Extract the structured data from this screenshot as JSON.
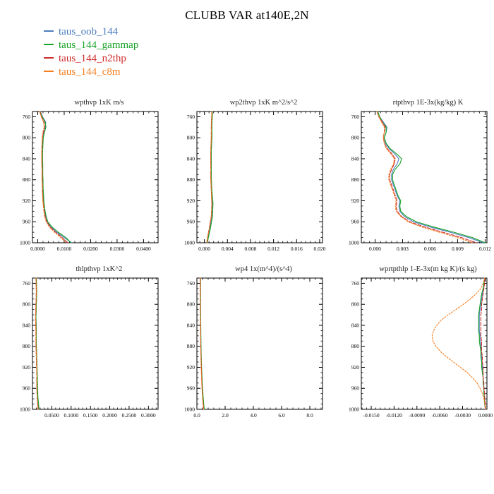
{
  "header": {
    "title": "CLUBB VAR at140E,2N"
  },
  "legend": {
    "items": [
      {
        "label": "taus_oob_144",
        "color": "#4b7dbd",
        "line_style": "solid"
      },
      {
        "label": "taus_144_gammap",
        "color": "#18a428",
        "line_style": "solid"
      },
      {
        "label": "taus_144_n2thp",
        "color": "#cf2b2b",
        "line_style": "dashed"
      },
      {
        "label": "taus_144_c8m",
        "color": "#f57e1f",
        "line_style": "dotted"
      }
    ]
  },
  "chart_data": [
    {
      "type": "line",
      "title": "wpthvp   1xK m/s",
      "xlim": [
        -0.002,
        0.0455
      ],
      "xticks": [
        0.0,
        0.01,
        0.02,
        0.03,
        0.04
      ],
      "xtick_labels": [
        "0.0000",
        "0.0100",
        "0.0200",
        "0.0300",
        "0.0400"
      ],
      "ylim": [
        750,
        1000
      ],
      "yticks": [
        760,
        800,
        840,
        880,
        920,
        960,
        1000
      ],
      "ytick_labels": [
        "760",
        "800",
        "840",
        "880",
        "920",
        "960",
        "1000"
      ],
      "y_levels": [
        750,
        760,
        770,
        780,
        790,
        800,
        810,
        820,
        830,
        840,
        850,
        860,
        870,
        880,
        890,
        900,
        910,
        920,
        930,
        940,
        950,
        960,
        970,
        980,
        990,
        1000
      ],
      "series": [
        {
          "name": "taus_oob_144",
          "values": [
            0.001,
            0.0018,
            0.003,
            0.0029,
            0.0023,
            0.002,
            0.0019,
            0.0018,
            0.0018,
            0.0018,
            0.0018,
            0.0018,
            0.0018,
            0.0019,
            0.0019,
            0.002,
            0.0021,
            0.0022,
            0.0024,
            0.0027,
            0.003,
            0.0036,
            0.005,
            0.0072,
            0.01,
            0.0128
          ]
        },
        {
          "name": "taus_144_gammap",
          "values": [
            0.0009,
            0.0016,
            0.0028,
            0.0031,
            0.0025,
            0.0021,
            0.002,
            0.0019,
            0.0018,
            0.0018,
            0.0019,
            0.0019,
            0.0019,
            0.002,
            0.002,
            0.0021,
            0.0022,
            0.0023,
            0.0025,
            0.0028,
            0.0032,
            0.0038,
            0.0054,
            0.0078,
            0.0106,
            0.0126
          ]
        },
        {
          "name": "taus_144_n2thp",
          "values": [
            0.0008,
            0.0014,
            0.0024,
            0.0026,
            0.0021,
            0.0018,
            0.0017,
            0.0016,
            0.0016,
            0.0016,
            0.0016,
            0.0017,
            0.0017,
            0.0017,
            0.0018,
            0.0018,
            0.0019,
            0.002,
            0.0022,
            0.0025,
            0.0028,
            0.0034,
            0.0047,
            0.0068,
            0.0092,
            0.0114
          ]
        },
        {
          "name": "taus_144_c8m",
          "values": [
            0.0007,
            0.0013,
            0.0022,
            0.0024,
            0.0019,
            0.0017,
            0.0016,
            0.0015,
            0.0015,
            0.0015,
            0.0015,
            0.0016,
            0.0016,
            0.0016,
            0.0017,
            0.0017,
            0.0018,
            0.0019,
            0.0021,
            0.0023,
            0.0026,
            0.0032,
            0.0044,
            0.0063,
            0.0086,
            0.0108
          ]
        }
      ]
    },
    {
      "type": "line",
      "title": "wp2thvp   1xK  m^2/s^2",
      "xlim": [
        -0.0013,
        0.0205
      ],
      "xticks": [
        0.0,
        0.004,
        0.008,
        0.012,
        0.016,
        0.02
      ],
      "xtick_labels": [
        "0.000",
        "0.004",
        "0.008",
        "0.012",
        "0.016",
        "0.020"
      ],
      "ylim": [
        750,
        1000
      ],
      "yticks": [
        760,
        800,
        840,
        880,
        920,
        960,
        1000
      ],
      "ytick_labels": [
        "760",
        "800",
        "840",
        "880",
        "920",
        "960",
        "1000"
      ],
      "y_levels": [
        750,
        775,
        800,
        825,
        850,
        875,
        900,
        925,
        950,
        975,
        1000
      ],
      "series": [
        {
          "name": "taus_oob_144",
          "values": [
            0.0014,
            0.0013,
            0.0013,
            0.0012,
            0.0012,
            0.0012,
            0.0012,
            0.0014,
            0.0013,
            0.0009,
            0.0005
          ]
        },
        {
          "name": "taus_144_gammap",
          "values": [
            0.0014,
            0.0013,
            0.0013,
            0.0012,
            0.0012,
            0.0012,
            0.0013,
            0.0015,
            0.0014,
            0.001,
            0.0005
          ]
        },
        {
          "name": "taus_144_n2thp",
          "values": [
            0.0013,
            0.0012,
            0.0012,
            0.0011,
            0.0011,
            0.0011,
            0.0012,
            0.0013,
            0.0012,
            0.0008,
            0.0004
          ]
        },
        {
          "name": "taus_144_c8m",
          "values": [
            0.0013,
            0.0012,
            0.0012,
            0.0011,
            0.0011,
            0.0011,
            0.0012,
            0.0013,
            0.0012,
            0.0008,
            0.0004
          ]
        }
      ]
    },
    {
      "type": "line",
      "title": "rtpthvp   1E-3x(kg/kg) K",
      "xlim": [
        -0.0015,
        0.0122
      ],
      "xticks": [
        0.0,
        0.003,
        0.006,
        0.009,
        0.012
      ],
      "xtick_labels": [
        "0.000",
        "0.003",
        "0.006",
        "0.009",
        "0.012"
      ],
      "ylim": [
        750,
        1000
      ],
      "yticks": [
        760,
        800,
        840,
        880,
        920,
        960,
        1000
      ],
      "ytick_labels": [
        "760",
        "800",
        "840",
        "880",
        "920",
        "960",
        "1000"
      ],
      "y_levels": [
        750,
        760,
        770,
        780,
        790,
        800,
        810,
        820,
        830,
        840,
        850,
        860,
        870,
        880,
        890,
        900,
        910,
        920,
        930,
        940,
        950,
        960,
        970,
        980,
        990,
        1000
      ],
      "series": [
        {
          "name": "taus_oob_144",
          "values": [
            0.0003,
            0.0005,
            0.0009,
            0.0013,
            0.0012,
            0.001,
            0.0011,
            0.0015,
            0.0021,
            0.0026,
            0.0024,
            0.002,
            0.0018,
            0.0018,
            0.002,
            0.0022,
            0.0024,
            0.0027,
            0.0026,
            0.0027,
            0.0032,
            0.0042,
            0.006,
            0.0082,
            0.0102,
            0.0118
          ]
        },
        {
          "name": "taus_144_gammap",
          "values": [
            0.0003,
            0.0005,
            0.0008,
            0.0012,
            0.0012,
            0.001,
            0.0012,
            0.0016,
            0.0023,
            0.0029,
            0.0027,
            0.0022,
            0.0019,
            0.0019,
            0.0021,
            0.0023,
            0.0025,
            0.0028,
            0.0027,
            0.0028,
            0.0034,
            0.0045,
            0.0064,
            0.0086,
            0.0106,
            0.012
          ]
        },
        {
          "name": "taus_144_n2thp",
          "values": [
            0.0002,
            0.0004,
            0.0008,
            0.0011,
            0.001,
            0.0009,
            0.001,
            0.0013,
            0.0018,
            0.0022,
            0.0021,
            0.0018,
            0.0016,
            0.0016,
            0.0018,
            0.002,
            0.0022,
            0.0024,
            0.0023,
            0.0024,
            0.0029,
            0.0038,
            0.0054,
            0.0074,
            0.0094,
            0.011
          ]
        },
        {
          "name": "taus_144_c8m",
          "values": [
            0.0002,
            0.0004,
            0.0007,
            0.001,
            0.001,
            0.0009,
            0.001,
            0.0012,
            0.0017,
            0.0021,
            0.002,
            0.0017,
            0.0015,
            0.0015,
            0.0017,
            0.0019,
            0.0021,
            0.0023,
            0.0022,
            0.0023,
            0.0028,
            0.0036,
            0.0051,
            0.007,
            0.009,
            0.0106
          ]
        }
      ]
    },
    {
      "type": "line",
      "title": "thlpthvp   1xK^2",
      "xlim": [
        0.0,
        0.325
      ],
      "xticks": [
        0.05,
        0.1,
        0.15,
        0.2,
        0.25,
        0.3
      ],
      "xtick_labels": [
        "0.0500",
        "0.1000",
        "0.1500",
        "0.2000",
        "0.2500",
        "0.3000"
      ],
      "ylim": [
        750,
        1000
      ],
      "yticks": [
        760,
        800,
        840,
        880,
        920,
        960,
        1000
      ],
      "ytick_labels": [
        "760",
        "800",
        "840",
        "880",
        "920",
        "960",
        "1000"
      ],
      "y_levels": [
        750,
        775,
        800,
        825,
        850,
        875,
        900,
        925,
        950,
        975,
        1000
      ],
      "series": [
        {
          "name": "taus_oob_144",
          "values": [
            0.01,
            0.011,
            0.01,
            0.009,
            0.01,
            0.01,
            0.011,
            0.012,
            0.012,
            0.013,
            0.016
          ]
        },
        {
          "name": "taus_144_gammap",
          "values": [
            0.01,
            0.011,
            0.01,
            0.009,
            0.01,
            0.01,
            0.011,
            0.012,
            0.013,
            0.014,
            0.017
          ]
        },
        {
          "name": "taus_144_n2thp",
          "values": [
            0.009,
            0.01,
            0.009,
            0.008,
            0.009,
            0.009,
            0.01,
            0.011,
            0.011,
            0.012,
            0.015
          ]
        },
        {
          "name": "taus_144_c8m",
          "values": [
            0.009,
            0.01,
            0.009,
            0.008,
            0.009,
            0.009,
            0.01,
            0.011,
            0.011,
            0.012,
            0.014
          ]
        }
      ]
    },
    {
      "type": "line",
      "title": "wp4   1x(m^4)/(s^4)",
      "xlim": [
        0.0,
        8.9
      ],
      "xticks": [
        0.0,
        2.0,
        4.0,
        6.0,
        8.0
      ],
      "xtick_labels": [
        "0.0",
        "2.0",
        "4.0",
        "6.0",
        "8.0"
      ],
      "ylim": [
        750,
        1000
      ],
      "yticks": [
        760,
        800,
        840,
        880,
        920,
        960,
        1000
      ],
      "ytick_labels": [
        "760",
        "800",
        "840",
        "880",
        "920",
        "960",
        "1000"
      ],
      "y_levels": [
        750,
        775,
        800,
        825,
        850,
        875,
        900,
        925,
        950,
        975,
        1000
      ],
      "series": [
        {
          "name": "taus_oob_144",
          "values": [
            0.25,
            0.25,
            0.25,
            0.26,
            0.27,
            0.28,
            0.3,
            0.33,
            0.36,
            0.42,
            0.5
          ]
        },
        {
          "name": "taus_144_gammap",
          "values": [
            0.26,
            0.26,
            0.26,
            0.27,
            0.28,
            0.29,
            0.31,
            0.34,
            0.38,
            0.44,
            0.52
          ]
        },
        {
          "name": "taus_144_n2thp",
          "values": [
            0.24,
            0.24,
            0.24,
            0.25,
            0.26,
            0.27,
            0.29,
            0.32,
            0.35,
            0.4,
            0.48
          ]
        },
        {
          "name": "taus_144_c8m",
          "values": [
            0.24,
            0.24,
            0.24,
            0.25,
            0.26,
            0.27,
            0.29,
            0.31,
            0.34,
            0.39,
            0.47
          ]
        }
      ]
    },
    {
      "type": "line",
      "title": "wprtpthlp   1-E-3x(m kg K)/(s kg)",
      "xlim": [
        -0.0163,
        0.0002
      ],
      "xticks": [
        -0.015,
        -0.012,
        -0.009,
        -0.006,
        -0.003,
        0.0
      ],
      "xtick_labels": [
        "-0.0150",
        "-0.0120",
        "-0.0090",
        "-0.0060",
        "-0.0030",
        "0.0000"
      ],
      "ylim": [
        750,
        1000
      ],
      "yticks": [
        760,
        800,
        840,
        880,
        920,
        960,
        1000
      ],
      "ytick_labels": [
        "760",
        "800",
        "840",
        "880",
        "920",
        "960",
        "1000"
      ],
      "y_levels": [
        750,
        760,
        770,
        780,
        790,
        800,
        810,
        820,
        830,
        840,
        850,
        860,
        870,
        880,
        890,
        900,
        910,
        920,
        930,
        940,
        950,
        960,
        970,
        980,
        990,
        1000
      ],
      "series": [
        {
          "name": "taus_oob_144",
          "values": [
            -0.0001,
            -0.0002,
            -0.0003,
            -0.0004,
            -0.0005,
            -0.0006,
            -0.0007,
            -0.0008,
            -0.0008,
            -0.0008,
            -0.0008,
            -0.0007,
            -0.0007,
            -0.0006,
            -0.0006,
            -0.0005,
            -0.0005,
            -0.0004,
            -0.0004,
            -0.0003,
            -0.0003,
            -0.0002,
            -0.0002,
            -0.0001,
            -0.0001,
            0.0
          ]
        },
        {
          "name": "taus_144_gammap",
          "values": [
            -0.0001,
            -0.0002,
            -0.0003,
            -0.0005,
            -0.0006,
            -0.0007,
            -0.0008,
            -0.0009,
            -0.0009,
            -0.0009,
            -0.0009,
            -0.0008,
            -0.0008,
            -0.0007,
            -0.0006,
            -0.0006,
            -0.0005,
            -0.0005,
            -0.0004,
            -0.0003,
            -0.0003,
            -0.0002,
            -0.0002,
            -0.0001,
            -0.0001,
            0.0
          ]
        },
        {
          "name": "taus_144_n2thp",
          "values": [
            -0.0001,
            -0.0001,
            -0.0002,
            -0.0003,
            -0.0004,
            -0.0005,
            -0.0005,
            -0.0006,
            -0.0006,
            -0.0006,
            -0.0006,
            -0.0006,
            -0.0005,
            -0.0005,
            -0.0005,
            -0.0004,
            -0.0004,
            -0.0003,
            -0.0003,
            -0.0003,
            -0.0002,
            -0.0002,
            -0.0001,
            -0.0001,
            0.0,
            0.0
          ]
        },
        {
          "name": "taus_144_c8m",
          "values": [
            -0.0001,
            -0.0003,
            -0.0006,
            -0.0012,
            -0.002,
            -0.0029,
            -0.0039,
            -0.0049,
            -0.0058,
            -0.0064,
            -0.0068,
            -0.007,
            -0.0069,
            -0.0065,
            -0.0059,
            -0.0051,
            -0.0042,
            -0.0033,
            -0.0024,
            -0.0017,
            -0.0011,
            -0.0007,
            -0.0004,
            -0.0002,
            -0.0001,
            0.0
          ]
        }
      ]
    }
  ]
}
